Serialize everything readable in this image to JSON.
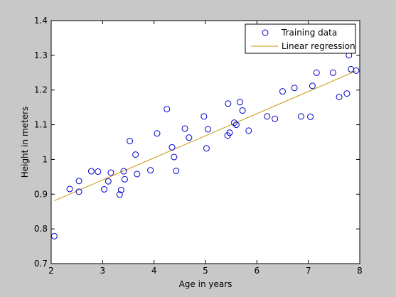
{
  "colors": {
    "figure_background": "#c8c8c8",
    "axes_background": "#ffffff",
    "axis_color": "#000000",
    "marker_color": "#0000cc",
    "line_color": "#c8960a"
  },
  "chart_data": {
    "type": "scatter",
    "title": "",
    "xlabel": "Age in years",
    "ylabel": "Height in meters",
    "xlim": [
      2,
      8
    ],
    "ylim": [
      0.7,
      1.4
    ],
    "xticks": [
      "2",
      "3",
      "4",
      "5",
      "6",
      "7",
      "8"
    ],
    "yticks": [
      "0.7",
      "0.8",
      "0.9",
      "1",
      "1.1",
      "1.2",
      "1.3",
      "1.4"
    ],
    "grid": false,
    "legend_position": "top-right",
    "series": [
      {
        "name": "Training data",
        "kind": "scatter",
        "marker": "open-circle",
        "x": [
          2.06,
          2.36,
          2.54,
          2.54,
          2.78,
          2.91,
          3.03,
          3.11,
          3.16,
          3.33,
          3.36,
          3.41,
          3.43,
          3.53,
          3.64,
          3.67,
          3.93,
          4.06,
          4.25,
          4.35,
          4.39,
          4.43,
          4.6,
          4.68,
          4.97,
          5.02,
          5.05,
          5.43,
          5.44,
          5.47,
          5.56,
          5.6,
          5.67,
          5.72,
          5.84,
          6.2,
          6.35,
          6.5,
          6.73,
          6.86,
          7.04,
          7.08,
          7.16,
          7.48,
          7.6,
          7.75,
          7.79,
          7.83,
          7.93
        ],
        "y": [
          0.779,
          0.915,
          0.907,
          0.938,
          0.966,
          0.965,
          0.914,
          0.937,
          0.962,
          0.899,
          0.912,
          0.966,
          0.943,
          1.053,
          1.014,
          0.958,
          0.969,
          1.075,
          1.145,
          1.035,
          1.007,
          0.967,
          1.089,
          1.063,
          1.124,
          1.032,
          1.087,
          1.069,
          1.161,
          1.077,
          1.106,
          1.1,
          1.165,
          1.141,
          1.083,
          1.124,
          1.117,
          1.196,
          1.206,
          1.124,
          1.123,
          1.212,
          1.25,
          1.25,
          1.18,
          1.19,
          1.3,
          1.26,
          1.256
        ]
      },
      {
        "name": "Linear regression",
        "kind": "line",
        "x": [
          2.06,
          7.93
        ],
        "y": [
          0.881,
          1.255
        ]
      }
    ]
  }
}
